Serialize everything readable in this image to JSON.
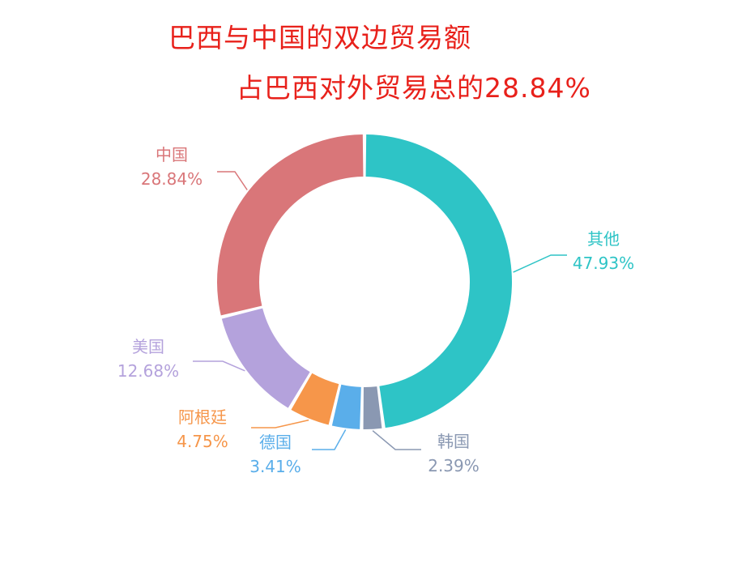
{
  "title_line1": "巴西与中国的双边贸易额",
  "title_line2": "占巴西对外贸易总的28.84%",
  "chart_data": {
    "type": "pie",
    "style": "donut",
    "title": "巴西与中国的双边贸易额占巴西对外贸易总的28.84%",
    "slices": [
      {
        "name": "其他",
        "value": 47.93,
        "label": "47.93%",
        "color": "#2ec4c6"
      },
      {
        "name": "韩国",
        "value": 2.39,
        "label": "2.39%",
        "color": "#8a98b2"
      },
      {
        "name": "德国",
        "value": 3.41,
        "label": "3.41%",
        "color": "#5aaeea"
      },
      {
        "name": "阿根廷",
        "value": 4.75,
        "label": "4.75%",
        "color": "#f6964a"
      },
      {
        "name": "美国",
        "value": 12.68,
        "label": "12.68%",
        "color": "#b4a2dc"
      },
      {
        "name": "中国",
        "value": 28.84,
        "label": "28.84%",
        "color": "#d97679"
      }
    ]
  }
}
